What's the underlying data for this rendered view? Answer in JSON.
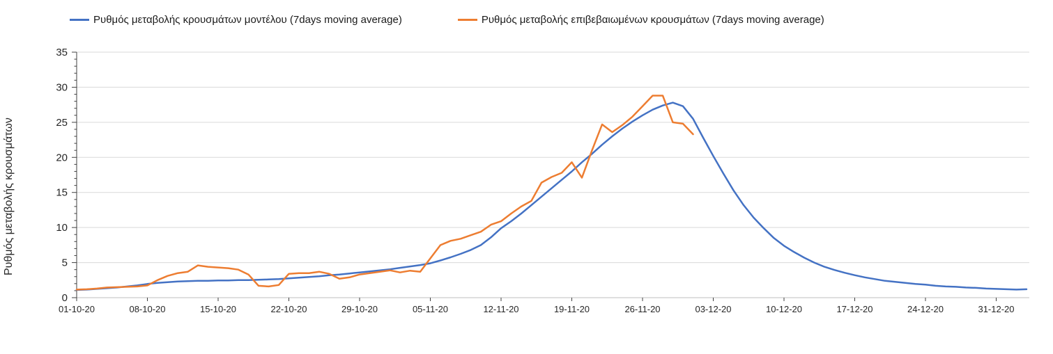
{
  "legend": {
    "items": [
      {
        "label": "Ρυθμός μεταβολής κρουσμάτων μοντέλου (7days moving average)",
        "color": "#4472c4"
      },
      {
        "label": "Ρυθμός μεταβολής επιβεβαιωμένων κρουσμάτων (7days moving average)",
        "color": "#ed7d31"
      }
    ]
  },
  "chart_data": {
    "type": "line",
    "title": "",
    "xlabel": "",
    "ylabel": "Ρυθμός μεταβολής κρουσμάτων",
    "ylim": [
      0,
      35
    ],
    "y_major_ticks": [
      0,
      5,
      10,
      15,
      20,
      25,
      30,
      35
    ],
    "y_minor_tick_step": 1,
    "grid": "horizontal-major-only",
    "legend_position": "top",
    "background": "#ffffff",
    "gridline_color": "#d9d9d9",
    "axis_color": "#404040",
    "x_unit": "days since 01-10-20 (daily points)",
    "x_tick_labels": [
      "01-10-20",
      "08-10-20",
      "15-10-20",
      "22-10-20",
      "29-10-20",
      "05-11-20",
      "12-11-20",
      "19-11-20",
      "26-11-20",
      "03-12-20",
      "10-12-20",
      "17-12-20",
      "24-12-20",
      "31-12-20"
    ],
    "x_tick_days": [
      0,
      7,
      14,
      21,
      28,
      35,
      42,
      49,
      56,
      63,
      70,
      77,
      84,
      91
    ],
    "series": [
      {
        "id": "model",
        "name": "Ρυθμός μεταβολής κρουσμάτων μοντέλου (7days moving average)",
        "color": "#4472c4",
        "start_day": 0,
        "values": [
          1.1,
          1.15,
          1.25,
          1.35,
          1.45,
          1.6,
          1.75,
          1.95,
          2.1,
          2.2,
          2.3,
          2.35,
          2.4,
          2.4,
          2.45,
          2.45,
          2.5,
          2.5,
          2.55,
          2.6,
          2.65,
          2.75,
          2.85,
          2.95,
          3.05,
          3.2,
          3.3,
          3.45,
          3.6,
          3.75,
          3.9,
          4.05,
          4.25,
          4.45,
          4.65,
          4.9,
          5.3,
          5.75,
          6.25,
          6.8,
          7.5,
          8.6,
          9.9,
          10.9,
          12.0,
          13.2,
          14.4,
          15.6,
          16.8,
          18.0,
          19.3,
          20.5,
          21.8,
          23.0,
          24.1,
          25.1,
          26.0,
          26.8,
          27.4,
          27.8,
          27.3,
          25.5,
          22.8,
          20.2,
          17.7,
          15.3,
          13.2,
          11.4,
          9.9,
          8.5,
          7.4,
          6.5,
          5.7,
          5.0,
          4.4,
          3.95,
          3.55,
          3.2,
          2.9,
          2.65,
          2.4,
          2.25,
          2.1,
          1.95,
          1.85,
          1.7,
          1.6,
          1.55,
          1.45,
          1.4,
          1.3,
          1.25,
          1.2,
          1.15,
          1.2
        ]
      },
      {
        "id": "confirmed",
        "name": "Ρυθμός μεταβολής επιβεβαιωμένων κρουσμάτων (7days moving average)",
        "color": "#ed7d31",
        "start_day": 0,
        "values": [
          1.15,
          1.2,
          1.3,
          1.45,
          1.5,
          1.55,
          1.6,
          1.75,
          2.5,
          3.1,
          3.5,
          3.7,
          4.6,
          4.4,
          4.3,
          4.2,
          4.0,
          3.3,
          1.7,
          1.6,
          1.8,
          3.4,
          3.5,
          3.5,
          3.7,
          3.4,
          2.7,
          2.9,
          3.3,
          3.5,
          3.7,
          3.9,
          3.6,
          3.85,
          3.7,
          5.6,
          7.5,
          8.1,
          8.4,
          8.9,
          9.4,
          10.4,
          10.9,
          12.0,
          13.0,
          13.8,
          16.4,
          17.2,
          17.8,
          19.3,
          17.1,
          21.0,
          24.7,
          23.6,
          24.6,
          25.8,
          27.3,
          28.8,
          28.8,
          25.0,
          24.8,
          23.3
        ]
      }
    ]
  }
}
